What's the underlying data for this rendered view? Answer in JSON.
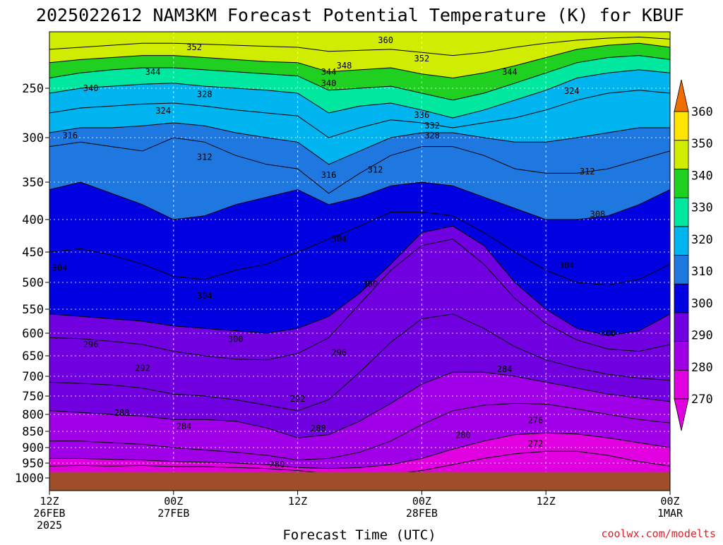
{
  "title": "2025022612 NAM3KM Forecast Potential Temperature (K) for KBUF",
  "credit": "coolwx.com/modelts",
  "colors": {
    "bands": [
      "#e000e0",
      "#a000e8",
      "#7000e0",
      "#0000e0",
      "#1e78e0",
      "#00b4f0",
      "#00e8a0",
      "#20d020",
      "#d0ec00",
      "#ffe400",
      "#ffa000",
      "#f06e00"
    ],
    "ground": "#9e4f2a"
  },
  "chart_data": {
    "type": "heatmap",
    "title": "2025022612 NAM3KM Forecast Potential Temperature (K) for KBUF",
    "xlabel": "Forecast Time (UTC)",
    "ylabel": "",
    "x_ticks": [
      {
        "hour": 0,
        "label": [
          "12Z",
          "26FEB",
          "2025"
        ]
      },
      {
        "hour": 12,
        "label": [
          "00Z",
          "27FEB"
        ]
      },
      {
        "hour": 24,
        "label": [
          "12Z"
        ]
      },
      {
        "hour": 36,
        "label": [
          "00Z",
          "28FEB"
        ]
      },
      {
        "hour": 48,
        "label": [
          "12Z"
        ]
      },
      {
        "hour": 60,
        "label": [
          "00Z",
          "1MAR"
        ]
      }
    ],
    "xlim": [
      0,
      60
    ],
    "y_ticks": [
      250,
      300,
      350,
      400,
      450,
      500,
      550,
      600,
      650,
      700,
      750,
      800,
      850,
      900,
      950,
      1000
    ],
    "ylim": [
      1000,
      200
    ],
    "y_units": "hPa",
    "colorbar": {
      "ticks": [
        270,
        280,
        290,
        300,
        310,
        320,
        330,
        340,
        350,
        360
      ],
      "range": [
        270,
        360
      ],
      "interval": 10
    },
    "contour_interval": 2,
    "x_hours": [
      0,
      3,
      6,
      9,
      12,
      15,
      18,
      21,
      24,
      27,
      30,
      33,
      36,
      39,
      42,
      45,
      48,
      51,
      54,
      57,
      60
    ],
    "isentropes": [
      {
        "theta": 276,
        "p": [
          960,
          958,
          960,
          958,
          962,
          962,
          965,
          968,
          975,
          985,
          990,
          988,
          975,
          955,
          935,
          920,
          912,
          912,
          925,
          945,
          960
        ]
      },
      {
        "theta": 280,
        "p": [
          935,
          935,
          938,
          940,
          945,
          947,
          950,
          955,
          965,
          968,
          965,
          955,
          935,
          905,
          880,
          860,
          855,
          858,
          870,
          885,
          900
        ]
      },
      {
        "theta": 284,
        "p": [
          880,
          880,
          885,
          890,
          900,
          908,
          915,
          925,
          940,
          935,
          915,
          880,
          830,
          790,
          775,
          770,
          772,
          785,
          800,
          815,
          825
        ]
      },
      {
        "theta": 288,
        "p": [
          790,
          795,
          800,
          805,
          815,
          815,
          820,
          840,
          870,
          860,
          820,
          770,
          720,
          690,
          690,
          700,
          715,
          730,
          745,
          755,
          765
        ]
      },
      {
        "theta": 292,
        "p": [
          715,
          718,
          722,
          730,
          745,
          750,
          760,
          775,
          790,
          760,
          690,
          620,
          570,
          560,
          590,
          630,
          660,
          680,
          695,
          705,
          710
        ]
      },
      {
        "theta": 296,
        "p": [
          610,
          612,
          618,
          625,
          640,
          650,
          658,
          660,
          645,
          610,
          540,
          480,
          440,
          430,
          470,
          530,
          580,
          615,
          635,
          640,
          625
        ]
      },
      {
        "theta": 300,
        "p": [
          560,
          565,
          570,
          575,
          585,
          590,
          595,
          600,
          590,
          565,
          520,
          470,
          420,
          410,
          440,
          500,
          550,
          590,
          605,
          595,
          560
        ]
      },
      {
        "theta": 304,
        "p": [
          450,
          445,
          455,
          470,
          490,
          495,
          480,
          470,
          450,
          430,
          410,
          390,
          390,
          395,
          420,
          450,
          480,
          500,
          505,
          495,
          470
        ]
      },
      {
        "theta": 308,
        "p": [
          360,
          350,
          365,
          380,
          400,
          395,
          380,
          370,
          360,
          380,
          370,
          355,
          350,
          355,
          370,
          385,
          400,
          400,
          395,
          380,
          360
        ]
      },
      {
        "theta": 312,
        "p": [
          310,
          305,
          310,
          315,
          300,
          305,
          320,
          330,
          335,
          365,
          340,
          320,
          310,
          310,
          320,
          335,
          340,
          340,
          335,
          325,
          315
        ]
      },
      {
        "theta": 316,
        "p": [
          295,
          290,
          290,
          288,
          285,
          288,
          295,
          300,
          305,
          330,
          315,
          300,
          295,
          295,
          300,
          305,
          305,
          300,
          295,
          290,
          290
        ]
      },
      {
        "theta": 324,
        "p": [
          275,
          270,
          268,
          266,
          265,
          268,
          272,
          275,
          278,
          300,
          290,
          282,
          285,
          290,
          285,
          280,
          272,
          262,
          255,
          252,
          255
        ]
      },
      {
        "theta": 332,
        "p": [
          255,
          250,
          248,
          246,
          245,
          248,
          250,
          252,
          255,
          275,
          268,
          265,
          272,
          280,
          272,
          262,
          252,
          240,
          235,
          232,
          235
        ]
      },
      {
        "theta": 340,
        "p": [
          240,
          235,
          232,
          230,
          230,
          232,
          234,
          236,
          238,
          252,
          250,
          248,
          255,
          262,
          255,
          245,
          235,
          225,
          220,
          218,
          222
        ]
      },
      {
        "theta": 348,
        "p": [
          225,
          222,
          220,
          218,
          218,
          220,
          222,
          224,
          225,
          234,
          232,
          230,
          236,
          240,
          235,
          228,
          220,
          212,
          208,
          206,
          210
        ]
      },
      {
        "theta": 356,
        "p": [
          212,
          210,
          208,
          206,
          206,
          207,
          208,
          209,
          210,
          214,
          213,
          212,
          215,
          218,
          215,
          210,
          206,
          203,
          201,
          200,
          202
        ]
      }
    ],
    "labels": [
      {
        "theta": "360",
        "hour": 32.5,
        "p": 203
      },
      {
        "theta": "352",
        "hour": 14,
        "p": 210
      },
      {
        "theta": "352",
        "hour": 36,
        "p": 221
      },
      {
        "theta": "348",
        "hour": 28.5,
        "p": 228
      },
      {
        "theta": "344",
        "hour": 10,
        "p": 234
      },
      {
        "theta": "344",
        "hour": 27,
        "p": 234
      },
      {
        "theta": "344",
        "hour": 44.5,
        "p": 234
      },
      {
        "theta": "340",
        "hour": 4,
        "p": 250
      },
      {
        "theta": "340",
        "hour": 27,
        "p": 245
      },
      {
        "theta": "328",
        "hour": 15,
        "p": 256
      },
      {
        "theta": "324",
        "hour": 11,
        "p": 273
      },
      {
        "theta": "324",
        "hour": 50.5,
        "p": 253
      },
      {
        "theta": "336",
        "hour": 36,
        "p": 277
      },
      {
        "theta": "332",
        "hour": 37,
        "p": 288
      },
      {
        "theta": "328",
        "hour": 37,
        "p": 298
      },
      {
        "theta": "316",
        "hour": 2,
        "p": 298
      },
      {
        "theta": "312",
        "hour": 15,
        "p": 322
      },
      {
        "theta": "316",
        "hour": 27,
        "p": 342
      },
      {
        "theta": "312",
        "hour": 31.5,
        "p": 336
      },
      {
        "theta": "312",
        "hour": 52,
        "p": 338
      },
      {
        "theta": "308",
        "hour": 53,
        "p": 393
      },
      {
        "theta": "304",
        "hour": 28,
        "p": 430
      },
      {
        "theta": "304",
        "hour": 1,
        "p": 476
      },
      {
        "theta": "304",
        "hour": 15,
        "p": 525
      },
      {
        "theta": "304",
        "hour": 50,
        "p": 472
      },
      {
        "theta": "300",
        "hour": 31,
        "p": 503
      },
      {
        "theta": "300",
        "hour": 18,
        "p": 613
      },
      {
        "theta": "300",
        "hour": 54,
        "p": 600
      },
      {
        "theta": "296",
        "hour": 4,
        "p": 625
      },
      {
        "theta": "296",
        "hour": 28,
        "p": 643
      },
      {
        "theta": "292",
        "hour": 9,
        "p": 680
      },
      {
        "theta": "292",
        "hour": 24,
        "p": 758
      },
      {
        "theta": "288",
        "hour": 7,
        "p": 796
      },
      {
        "theta": "288",
        "hour": 26,
        "p": 842
      },
      {
        "theta": "284",
        "hour": 13,
        "p": 835
      },
      {
        "theta": "284",
        "hour": 44,
        "p": 683
      },
      {
        "theta": "280",
        "hour": 22,
        "p": 955
      },
      {
        "theta": "280",
        "hour": 40,
        "p": 862
      },
      {
        "theta": "276",
        "hour": 47,
        "p": 818
      },
      {
        "theta": "272",
        "hour": 47,
        "p": 888
      }
    ],
    "grid": true,
    "ground_level_hPa": 980
  }
}
